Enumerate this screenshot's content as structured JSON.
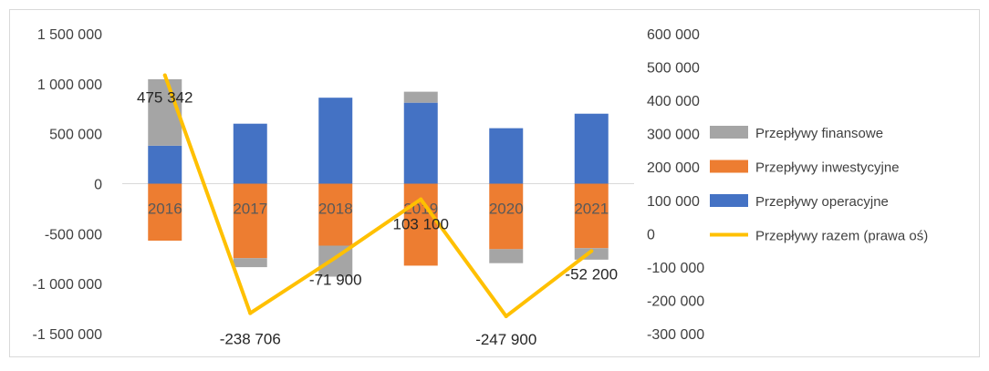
{
  "chart_data": {
    "type": "bar",
    "stacked": true,
    "categories": [
      "2016",
      "2017",
      "2018",
      "2019",
      "2020",
      "2021"
    ],
    "series": [
      {
        "name": "Przepływy operacyjne",
        "kind": "bar",
        "axis": "left",
        "color": "#4472C4",
        "values": [
          380000,
          600000,
          860000,
          810000,
          555000,
          700000
        ]
      },
      {
        "name": "Przepływy inwestycyjne",
        "kind": "bar",
        "axis": "left",
        "color": "#ED7D31",
        "values": [
          -570000,
          -745000,
          -620000,
          -820000,
          -655000,
          -645000
        ]
      },
      {
        "name": "Przepływy finansowe",
        "kind": "bar",
        "axis": "left",
        "color": "#A5A5A5",
        "values": [
          665000,
          -90000,
          -310000,
          110000,
          -140000,
          -115000
        ]
      },
      {
        "name": "Przepływy razem (prawa oś)",
        "kind": "line",
        "axis": "right",
        "color": "#FFC000",
        "values": [
          475342,
          -238706,
          -71900,
          103100,
          -247900,
          -52200
        ],
        "labels": [
          "475 342",
          "-238 706",
          "-71 900",
          "103 100",
          "-247 900",
          "-52 200"
        ]
      }
    ],
    "y_left": {
      "min": -1500000,
      "max": 1500000,
      "ticks": [
        "1 500 000",
        "1 000 000",
        "500 000",
        "0",
        "-500 000",
        "-1 000 000",
        "-1 500 000"
      ]
    },
    "y_right": {
      "min": -300000,
      "max": 600000,
      "ticks": [
        "600 000",
        "500 000",
        "400 000",
        "300 000",
        "200 000",
        "100 000",
        "0",
        "-100 000",
        "-200 000",
        "-300 000"
      ]
    },
    "legend": {
      "placement": "right",
      "items": [
        "Przepływy finansowe",
        "Przepływy inwestycyjne",
        "Przepływy operacyjne",
        "Przepływy razem (prawa oś)"
      ]
    },
    "grid": false
  }
}
